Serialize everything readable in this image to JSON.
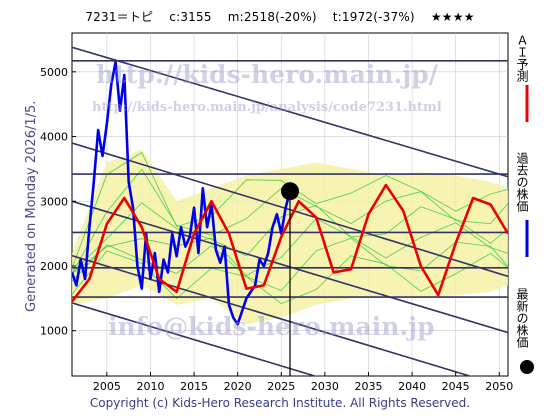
{
  "header": {
    "code": "7231＝トピ",
    "current": "c:3155",
    "mid": "m:2518(-20%)",
    "target": "t:1972(-37%)",
    "rating": "★★★★"
  },
  "side_caption": "Generated on Monday 2026/1/5.",
  "footer": "Copyright (c) Kids-Hero Research Institute. All Rights Reserved.",
  "watermarks": {
    "url_main": "http://kids-hero.main.jp/",
    "url_analysis": "http://kids-hero.main.jp/analysis/code7231.html",
    "email": "info@kids-hero.main.jp"
  },
  "legend": {
    "ai_label": "ＡＩ予測",
    "past_label": "過去の株価",
    "latest_label": "最新の株価"
  },
  "colors": {
    "ai": "#ee0000",
    "price": "#0000ee",
    "scenario_fill": "#f5f0a0",
    "scenario_lines": "#33cc33",
    "channel": "#333366",
    "marker": "#000000"
  },
  "chart_data": {
    "type": "line",
    "xlim": [
      2001,
      2051
    ],
    "ylim": [
      300,
      5600
    ],
    "x_ticks": [
      2005,
      2010,
      2015,
      2020,
      2025,
      2030,
      2035,
      2040,
      2045,
      2050
    ],
    "y_ticks": [
      1000,
      2000,
      3000,
      4000,
      5000
    ],
    "latest_marker": {
      "x": 2026.0,
      "y": 3155
    },
    "horizontal_levels": [
      5170,
      3420,
      2518,
      1972,
      1520
    ],
    "channel_lines": [
      {
        "x": [
          2001,
          2051
        ],
        "y": [
          5380,
          3380
        ]
      },
      {
        "x": [
          2001,
          2051
        ],
        "y": [
          3900,
          1840
        ]
      },
      {
        "x": [
          2001,
          2051
        ],
        "y": [
          3000,
          970
        ]
      },
      {
        "x": [
          2001,
          2051
        ],
        "y": [
          2160,
          120
        ]
      },
      {
        "x": [
          2001,
          2051
        ],
        "y": [
          1430,
          -600
        ]
      }
    ],
    "series": [
      {
        "name": "過去の株価",
        "x": [
          2001.0,
          2001.5,
          2002.0,
          2002.5,
          2003.0,
          2003.5,
          2004.0,
          2004.5,
          2005.0,
          2005.5,
          2006.0,
          2006.5,
          2007.0,
          2007.5,
          2008.0,
          2008.5,
          2009.0,
          2009.5,
          2010.0,
          2010.5,
          2011.0,
          2011.5,
          2012.0,
          2012.5,
          2013.0,
          2013.5,
          2014.0,
          2014.5,
          2015.0,
          2015.5,
          2016.0,
          2016.5,
          2017.0,
          2017.5,
          2018.0,
          2018.5,
          2019.0,
          2019.5,
          2020.0,
          2020.5,
          2021.0,
          2021.5,
          2022.0,
          2022.5,
          2023.0,
          2023.5,
          2024.0,
          2024.5,
          2025.0,
          2025.5,
          2026.0
        ],
        "y": [
          1900,
          1700,
          2100,
          1800,
          2600,
          3300,
          4100,
          3700,
          4200,
          4800,
          5150,
          4400,
          4950,
          3300,
          2900,
          2000,
          1650,
          2500,
          1800,
          2200,
          1600,
          2100,
          1900,
          2500,
          2150,
          2600,
          2300,
          2450,
          2900,
          2200,
          3200,
          2600,
          2950,
          2250,
          2050,
          2300,
          1400,
          1200,
          1100,
          1300,
          1500,
          1600,
          1700,
          2100,
          2000,
          2200,
          2600,
          2800,
          2500,
          2900,
          3155
        ]
      },
      {
        "name": "ＡＩ予測",
        "x": [
          2001.0,
          2003.0,
          2005.0,
          2007.0,
          2009.0,
          2011.0,
          2013.0,
          2015.0,
          2017.0,
          2019.0,
          2021.0,
          2023.0,
          2025.0,
          2027.0,
          2029.0,
          2031.0,
          2033.0,
          2035.0,
          2037.0,
          2039.0,
          2041.0,
          2043.0,
          2045.0,
          2047.0,
          2049.0,
          2051.0
        ],
        "y": [
          1450,
          1800,
          2650,
          3050,
          2600,
          1800,
          1600,
          2500,
          3000,
          2500,
          1650,
          1700,
          2450,
          3000,
          2750,
          1900,
          1950,
          2800,
          3250,
          2850,
          2000,
          1550,
          2350,
          3050,
          2950,
          2500
        ]
      }
    ],
    "band": {
      "x": [
        2001,
        2005,
        2009,
        2013,
        2017,
        2021,
        2025,
        2029,
        2033,
        2037,
        2041,
        2045,
        2049,
        2051
      ],
      "upper": [
        2200,
        3600,
        3800,
        3000,
        3200,
        3400,
        3500,
        3600,
        3500,
        3400,
        3450,
        3400,
        3300,
        3200
      ],
      "lower": [
        1400,
        1500,
        1700,
        1400,
        1500,
        1100,
        1200,
        1400,
        1500,
        1550,
        1500,
        1550,
        1600,
        1700
      ]
    }
  }
}
